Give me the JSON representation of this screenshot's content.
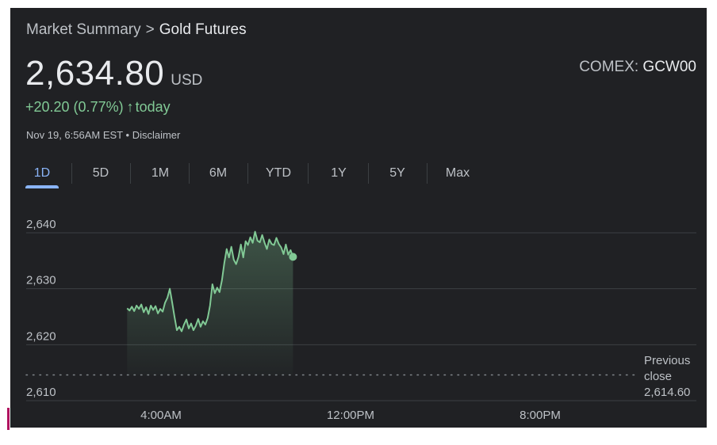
{
  "breadcrumb": {
    "parent": "Market Summary",
    "separator": ">",
    "current": "Gold Futures"
  },
  "quote": {
    "price": "2,634.80",
    "currency": "USD",
    "exchange_label": "COMEX:",
    "symbol": "GCW00",
    "change": "+20.20 (0.77%)",
    "change_icon": "arrow-up-icon",
    "change_arrow": "↑",
    "change_period": "today",
    "timestamp": "Nov 19, 6:56AM EST",
    "bullet": "•",
    "disclaimer": "Disclaimer"
  },
  "range_tabs": [
    {
      "label": "1D",
      "active": true
    },
    {
      "label": "5D",
      "active": false
    },
    {
      "label": "1M",
      "active": false
    },
    {
      "label": "6M",
      "active": false
    },
    {
      "label": "YTD",
      "active": false
    },
    {
      "label": "1Y",
      "active": false
    },
    {
      "label": "5Y",
      "active": false
    },
    {
      "label": "Max",
      "active": false
    }
  ],
  "colors": {
    "background": "#202124",
    "positive": "#81c995",
    "accent": "#8ab4f8",
    "grid": "#3c4043"
  },
  "previous_close": {
    "line1": "Previous",
    "line2": "close",
    "value": "2,614.60",
    "numeric": 2614.6
  },
  "chart_data": {
    "type": "line",
    "y_ticks": [
      "2,640",
      "2,630",
      "2,620",
      "2,610"
    ],
    "y_tick_values": [
      2640,
      2630,
      2620,
      2610
    ],
    "x_ticks": [
      "4:00AM",
      "12:00PM",
      "8:00PM"
    ],
    "ylim": [
      2610,
      2640
    ],
    "series": [
      {
        "x_hours": [
          0,
          0.1,
          0.2,
          0.3,
          0.4,
          0.5,
          0.6,
          0.7,
          0.8,
          0.9,
          1.0,
          1.1,
          1.2,
          1.3,
          1.4,
          1.5,
          1.6,
          1.7,
          1.8,
          1.9,
          2.0,
          2.1,
          2.2,
          2.3,
          2.4,
          2.5,
          2.6,
          2.7,
          2.8,
          2.9,
          3.0,
          3.1,
          3.2,
          3.3,
          3.4,
          3.5,
          3.6,
          3.7,
          3.8,
          3.9,
          4.0,
          4.1,
          4.2,
          4.3,
          4.4,
          4.5,
          4.6,
          4.7,
          4.8,
          4.9,
          5.0,
          5.1,
          5.2,
          5.3,
          5.4,
          5.5,
          5.6,
          5.7,
          5.8,
          5.9,
          6.0,
          6.1,
          6.2,
          6.3,
          6.4,
          6.5,
          6.6,
          6.7,
          6.8,
          6.9,
          7.0
        ],
        "values": [
          2626.5,
          2626.1,
          2626.8,
          2626.0,
          2627.0,
          2626.4,
          2627.2,
          2625.8,
          2626.7,
          2625.5,
          2627.0,
          2626.2,
          2626.9,
          2625.6,
          2626.4,
          2625.9,
          2627.5,
          2628.4,
          2630.0,
          2627.6,
          2625.0,
          2622.6,
          2623.2,
          2622.4,
          2623.6,
          2624.5,
          2622.9,
          2623.8,
          2622.6,
          2623.4,
          2624.6,
          2623.2,
          2624.2,
          2623.6,
          2624.8,
          2627.0,
          2630.8,
          2629.2,
          2630.2,
          2629.4,
          2631.5,
          2634.6,
          2637.1,
          2635.6,
          2637.5,
          2635.2,
          2634.4,
          2635.7,
          2637.9,
          2635.6,
          2638.5,
          2637.8,
          2639.2,
          2638.2,
          2640.2,
          2638.6,
          2638.3,
          2639.6,
          2638.2,
          2637.1,
          2638.8,
          2638.0,
          2637.8,
          2639.1,
          2638.0,
          2637.4,
          2636.2,
          2637.9,
          2636.1,
          2636.9,
          2635.7
        ]
      }
    ]
  }
}
